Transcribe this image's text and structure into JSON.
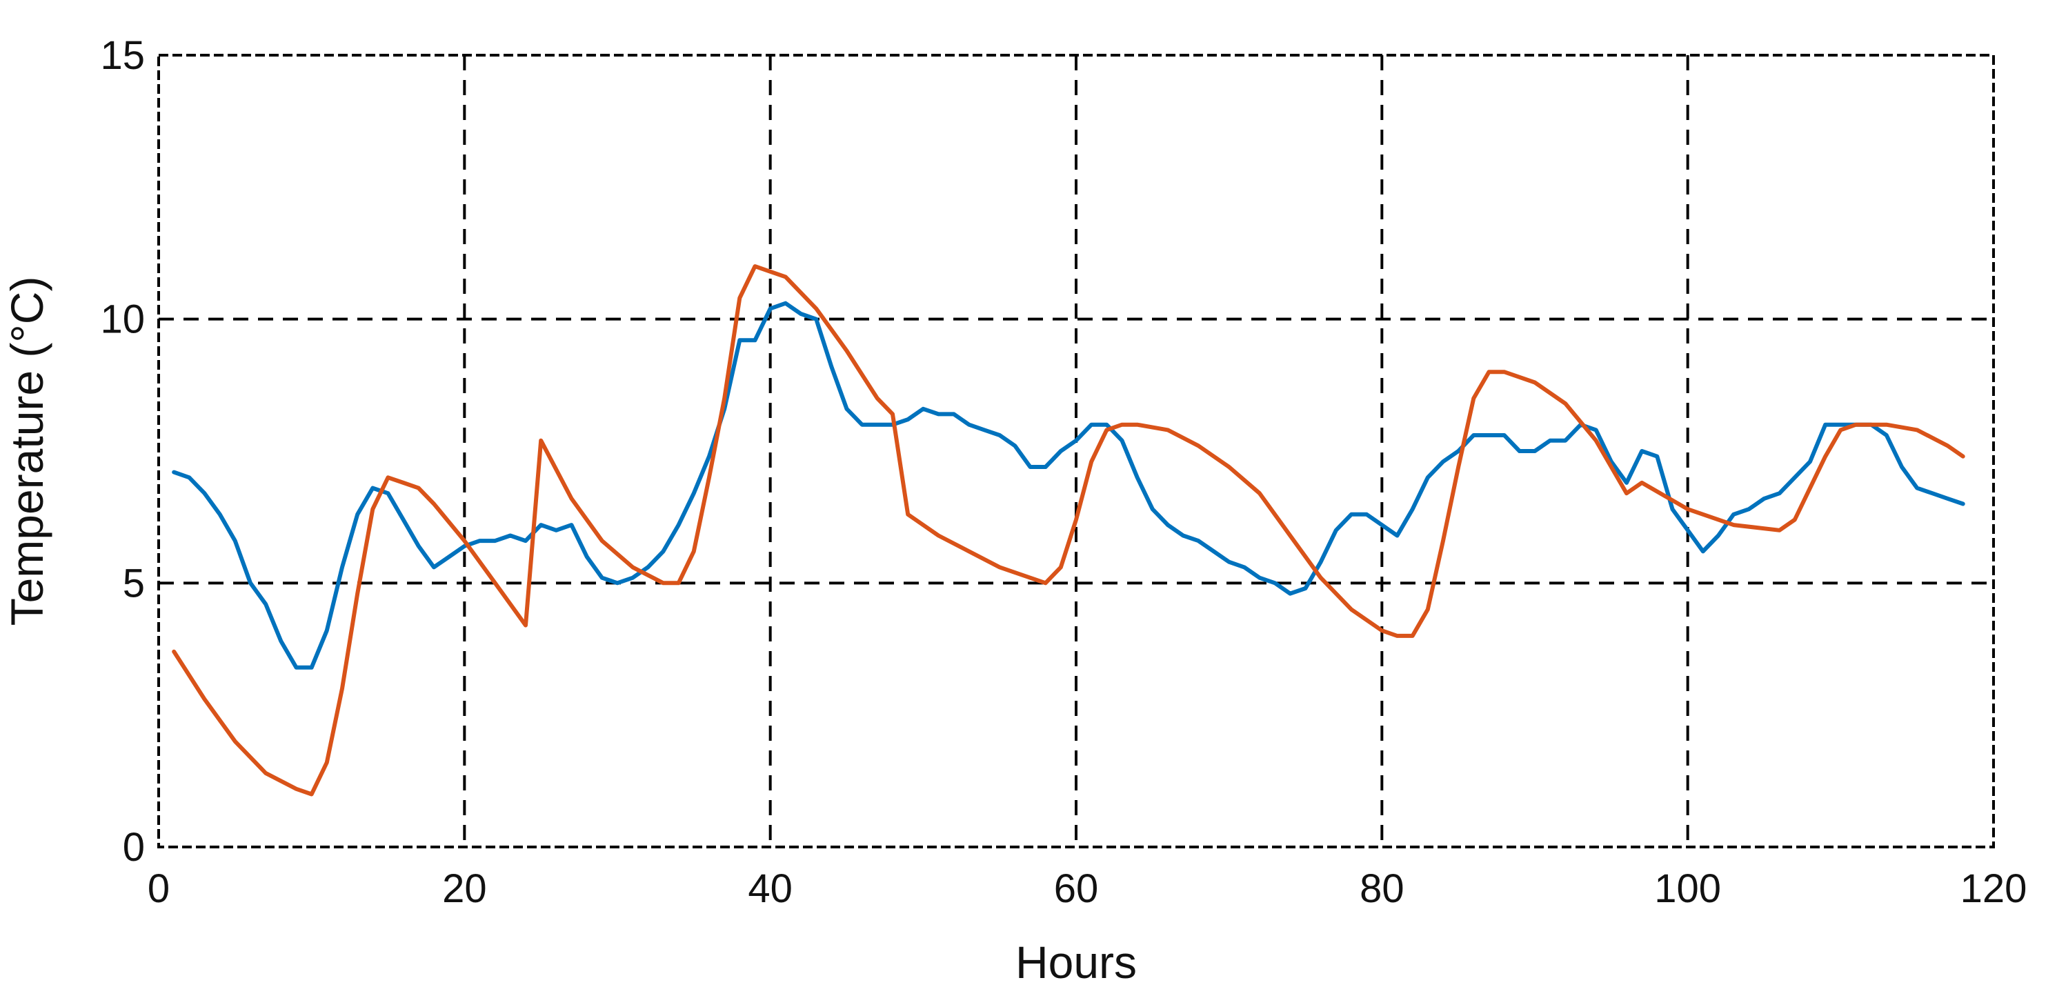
{
  "chart_data": {
    "type": "line",
    "title": "",
    "xlabel": "Hours",
    "ylabel": "Temperature (°C)",
    "xlim": [
      0,
      120
    ],
    "ylim": [
      0,
      15
    ],
    "xticks": [
      0,
      20,
      40,
      60,
      80,
      100,
      120
    ],
    "yticks": [
      0,
      5,
      10,
      15
    ],
    "grid": true,
    "grid_style": "dashed",
    "legend": "none",
    "colors": {
      "blue": "#0072BD",
      "orange": "#D95319",
      "grid": "#000000",
      "axis": "#000000"
    },
    "series": [
      {
        "color": "#0072BD",
        "x": [
          1,
          2,
          3,
          4,
          5,
          6,
          7,
          8,
          9,
          10,
          11,
          12,
          13,
          14,
          15,
          16,
          17,
          18,
          19,
          20,
          21,
          22,
          23,
          24,
          25,
          26,
          27,
          28,
          29,
          30,
          31,
          32,
          33,
          34,
          35,
          36,
          37,
          38,
          39,
          40,
          41,
          42,
          43,
          44,
          45,
          46,
          47,
          48,
          49,
          50,
          51,
          52,
          53,
          54,
          55,
          56,
          57,
          58,
          59,
          60,
          61,
          62,
          63,
          64,
          65,
          66,
          67,
          68,
          69,
          70,
          71,
          72,
          73,
          74,
          75,
          76,
          77,
          78,
          79,
          80,
          81,
          82,
          83,
          84,
          85,
          86,
          87,
          88,
          89,
          90,
          91,
          92,
          93,
          94,
          95,
          96,
          97,
          98,
          99,
          100,
          101,
          102,
          103,
          104,
          105,
          106,
          107,
          108,
          109,
          110,
          111,
          112,
          113,
          114,
          115,
          116,
          117,
          118
        ],
        "y": [
          7.1,
          7.0,
          6.7,
          6.3,
          5.8,
          5.0,
          4.6,
          3.9,
          3.4,
          3.4,
          4.1,
          5.3,
          6.3,
          6.8,
          6.7,
          6.2,
          5.7,
          5.3,
          5.5,
          5.7,
          5.8,
          5.8,
          5.9,
          5.8,
          6.1,
          6.0,
          6.1,
          5.5,
          5.1,
          5.0,
          5.1,
          5.3,
          5.6,
          6.1,
          6.7,
          7.4,
          8.3,
          9.6,
          9.6,
          10.2,
          10.3,
          10.1,
          10.0,
          9.1,
          8.3,
          8.0,
          8.0,
          8.0,
          8.1,
          8.3,
          8.2,
          8.2,
          8.0,
          7.9,
          7.8,
          7.6,
          7.2,
          7.2,
          7.5,
          7.7,
          8.0,
          8.0,
          7.7,
          7.0,
          6.4,
          6.1,
          5.9,
          5.8,
          5.6,
          5.4,
          5.3,
          5.1,
          5.0,
          4.8,
          4.9,
          5.4,
          6.0,
          6.3,
          6.3,
          6.1,
          5.9,
          6.4,
          7.0,
          7.3,
          7.5,
          7.8,
          7.8,
          7.8,
          7.5,
          7.5,
          7.7,
          7.7,
          8.0,
          7.9,
          7.3,
          6.9,
          7.5,
          7.4,
          6.4,
          6.0,
          5.6,
          5.9,
          6.3,
          6.4,
          6.6,
          6.7,
          7.0,
          7.3,
          8.0,
          8.0,
          8.0,
          8.0,
          7.8,
          7.2,
          6.8,
          6.7,
          6.6,
          6.5
        ]
      },
      {
        "color": "#D95319",
        "x": [
          1,
          3,
          5,
          7,
          9,
          10,
          11,
          12,
          13,
          14,
          15,
          16,
          17,
          18,
          20,
          22,
          24,
          25,
          27,
          29,
          31,
          33,
          34,
          35,
          36,
          37,
          38,
          39,
          40,
          41,
          43,
          45,
          47,
          48,
          49,
          51,
          53,
          55,
          57,
          58,
          59,
          60,
          61,
          62,
          63,
          64,
          66,
          68,
          70,
          72,
          74,
          76,
          78,
          80,
          81,
          82,
          83,
          84,
          85,
          86,
          87,
          88,
          90,
          92,
          94,
          96,
          97,
          100,
          103,
          106,
          107,
          108,
          109,
          110,
          111,
          112,
          113,
          115,
          117,
          118
        ],
        "y": [
          3.7,
          2.8,
          2.0,
          1.4,
          1.1,
          1.0,
          1.6,
          3.0,
          4.8,
          6.4,
          7.0,
          6.9,
          6.8,
          6.5,
          5.8,
          5.0,
          4.2,
          7.7,
          6.6,
          5.8,
          5.3,
          5.0,
          5.0,
          5.6,
          7.0,
          8.5,
          10.4,
          11.0,
          10.9,
          10.8,
          10.2,
          9.4,
          8.5,
          8.2,
          6.3,
          5.9,
          5.6,
          5.3,
          5.1,
          5.0,
          5.3,
          6.2,
          7.3,
          7.9,
          8.0,
          8.0,
          7.9,
          7.6,
          7.2,
          6.7,
          5.9,
          5.1,
          4.5,
          4.1,
          4.0,
          4.0,
          4.5,
          5.8,
          7.2,
          8.5,
          9.0,
          9.0,
          8.8,
          8.4,
          7.7,
          6.7,
          6.9,
          6.4,
          6.1,
          6.0,
          6.2,
          6.8,
          7.4,
          7.9,
          8.0,
          8.0,
          8.0,
          7.9,
          7.6,
          7.4
        ]
      }
    ]
  }
}
